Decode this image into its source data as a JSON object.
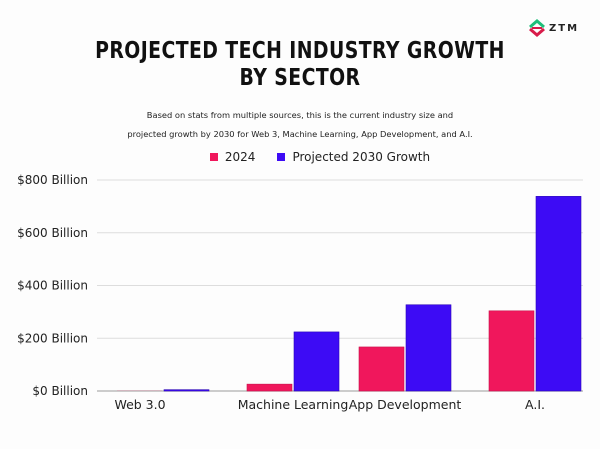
{
  "brand": {
    "logo_text": "ZTM",
    "logo_colors": [
      "#1fbf7a",
      "#d81b4a"
    ]
  },
  "colors": {
    "series_2024": "#f0175c",
    "series_2030": "#3d0bf5",
    "grid": "#dddddd",
    "baseline": "#bbbbbb"
  },
  "chart_data": {
    "type": "bar",
    "title": "PROJECTED TECH INDUSTRY GROWTH BY SECTOR",
    "title_lines": [
      "PROJECTED TECH INDUSTRY GROWTH",
      "BY SECTOR"
    ],
    "subtitle_lines": [
      "Based on stats from multiple sources, this is the current industry size and",
      "projected growth by 2030 for Web 3, Machine Learning, App Development, and A.I."
    ],
    "categories": [
      "Web 3.0",
      "Machine Learning",
      "App Development",
      "A.I."
    ],
    "series": [
      {
        "name": "2024",
        "values": [
          0.5,
          26,
          167,
          304
        ]
      },
      {
        "name": "Projected 2030 Growth",
        "values": [
          5,
          224,
          327,
          738
        ]
      }
    ],
    "xlabel": "",
    "ylabel": "",
    "ylim": [
      0,
      800
    ],
    "yticks": [
      0,
      200,
      400,
      600,
      800
    ],
    "ytick_labels": [
      "$0 Billion",
      "$200 Billion",
      "$400 Billion",
      "$600 Billion",
      "$800 Billion"
    ],
    "units": "Billion USD",
    "grid": true,
    "legend_position": "top-center"
  }
}
